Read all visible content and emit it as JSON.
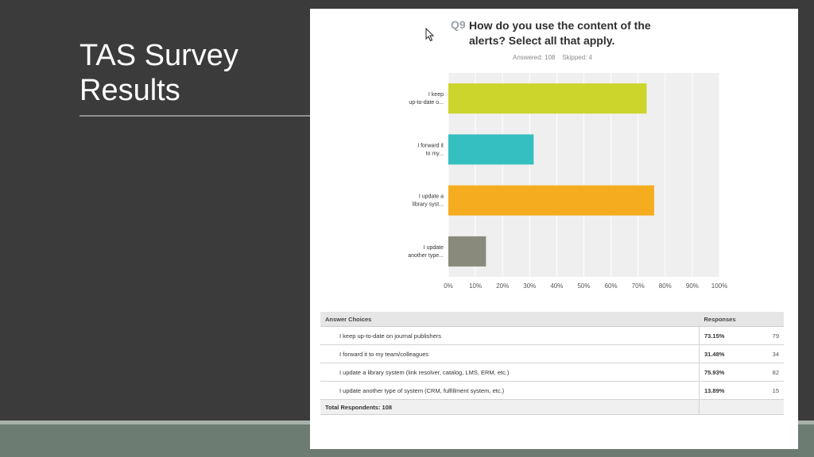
{
  "slide": {
    "title": "TAS Survey Results"
  },
  "question": {
    "number": "Q9",
    "text": "How do you use the content of the alerts? Select all that apply.",
    "stats": "Answered: 108    Skipped: 4"
  },
  "chart_data": {
    "type": "bar",
    "orientation": "horizontal",
    "categories": [
      "I keep up-to-date o...",
      "I forward it to my...",
      "I update a library syst...",
      "I update another type..."
    ],
    "category_lines": [
      [
        "I keep",
        "up-to-date o..."
      ],
      [
        "I forward it",
        "to my..."
      ],
      [
        "I update a",
        "library syst..."
      ],
      [
        "I update",
        "another type..."
      ]
    ],
    "values": [
      73.15,
      31.48,
      75.93,
      13.89
    ],
    "colors": [
      "#cbd52b",
      "#35bfc0",
      "#f5ad1f",
      "#8a8a7c"
    ],
    "xlim": [
      0,
      100
    ],
    "xticks": [
      "0%",
      "10%",
      "20%",
      "30%",
      "40%",
      "50%",
      "60%",
      "70%",
      "80%",
      "90%",
      "100%"
    ],
    "grid": true
  },
  "table": {
    "headers": {
      "choice": "Answer Choices",
      "responses": "Responses"
    },
    "rows": [
      {
        "choice": "I keep up-to-date on journal publishers",
        "percent": "73.15%",
        "count": "79"
      },
      {
        "choice": "I forward it to my team/colleagues",
        "percent": "31.48%",
        "count": "34"
      },
      {
        "choice": "I update a library system (link resolver, catalog, LMS, ERM, etc.)",
        "percent": "75.93%",
        "count": "82"
      },
      {
        "choice": "I update another type of system (CRM, fulfillment system, etc.)",
        "percent": "13.89%",
        "count": "15"
      }
    ],
    "total_label": "Total Respondents: 108"
  }
}
